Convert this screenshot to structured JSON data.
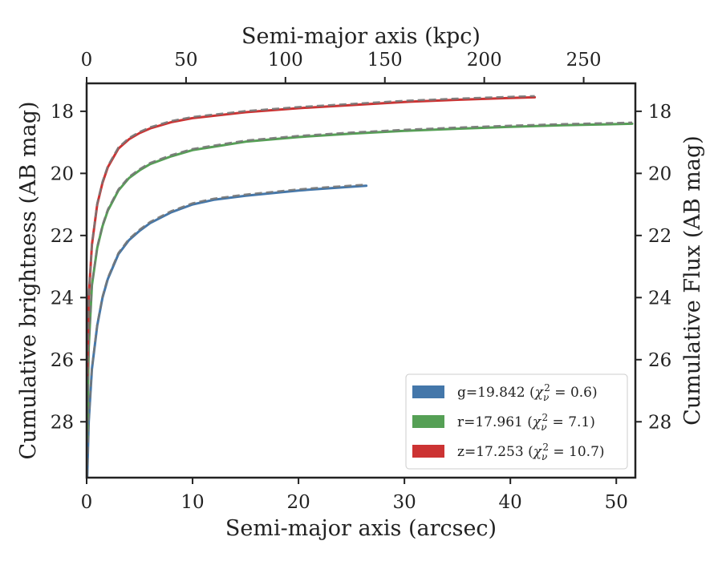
{
  "chart_data": {
    "type": "line",
    "xlabel": "Semi-major axis (arcsec)",
    "x2label": "Semi-major axis (kpc)",
    "ylabel": "Cumulative brightness (AB mag)",
    "y2label": "Cumulative Flux (AB mag)",
    "xlim": [
      0,
      51.8
    ],
    "x2lim": [
      0,
      276
    ],
    "ylim": [
      29.8,
      17.1
    ],
    "y_inverted": true,
    "x_ticks": [
      "0",
      "10",
      "20",
      "30",
      "40",
      "50"
    ],
    "x2_ticks": [
      "0",
      "50",
      "100",
      "150",
      "200",
      "250"
    ],
    "y_ticks": [
      "18",
      "20",
      "22",
      "24",
      "26",
      "28"
    ],
    "y2_ticks": [
      "18",
      "20",
      "22",
      "24",
      "26",
      "28"
    ],
    "legend_position": "lower-right",
    "model_line_style": "gray dashed",
    "series": [
      {
        "name": "g=19.842",
        "chi2": "0.6",
        "color": "#4477aa",
        "x": [
          0.05,
          0.2,
          0.5,
          1,
          1.5,
          2,
          3,
          4,
          5,
          6,
          8,
          10,
          12,
          15,
          20,
          22,
          25,
          26.4
        ],
        "y": [
          29.8,
          28.0,
          26.3,
          24.9,
          24.0,
          23.4,
          22.6,
          22.15,
          21.85,
          21.6,
          21.25,
          21.0,
          20.85,
          20.72,
          20.55,
          20.5,
          20.43,
          20.4
        ]
      },
      {
        "name": "r=17.961",
        "chi2": "7.1",
        "color": "#55a055",
        "x": [
          0.05,
          0.2,
          0.5,
          1,
          1.5,
          2,
          3,
          4,
          5,
          6,
          8,
          10,
          15,
          20,
          25,
          30,
          35,
          40,
          45,
          51.5
        ],
        "y": [
          28.5,
          25.6,
          23.6,
          22.4,
          21.7,
          21.2,
          20.55,
          20.15,
          19.9,
          19.7,
          19.45,
          19.25,
          18.98,
          18.83,
          18.72,
          18.63,
          18.56,
          18.5,
          18.45,
          18.4
        ]
      },
      {
        "name": "z=17.253",
        "chi2": "10.7",
        "color": "#cc3333",
        "x": [
          0.05,
          0.2,
          0.5,
          1,
          1.5,
          2,
          3,
          4,
          5,
          6,
          8,
          10,
          15,
          20,
          25,
          30,
          35,
          40,
          42.3
        ],
        "y": [
          26.5,
          24.0,
          22.3,
          21.0,
          20.3,
          19.8,
          19.2,
          18.9,
          18.7,
          18.55,
          18.35,
          18.22,
          18.03,
          17.9,
          17.8,
          17.7,
          17.63,
          17.57,
          17.55
        ]
      }
    ]
  }
}
